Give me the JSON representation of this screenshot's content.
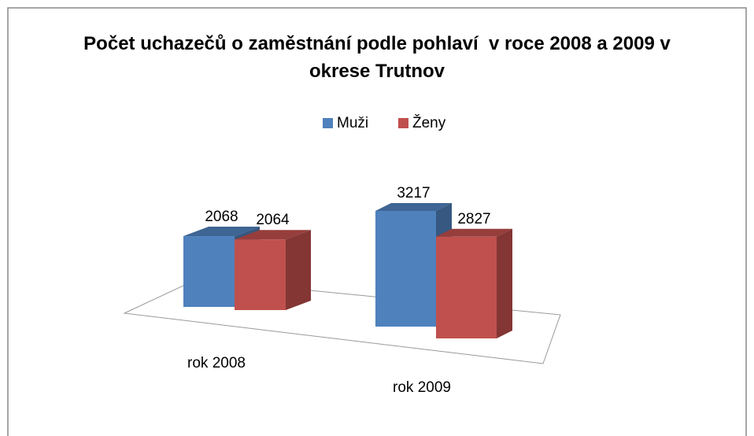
{
  "chart_data": {
    "type": "bar3d",
    "title": "Počet uchazečů o zaměstnání podle pohlaví  v roce 2008 a 2009 v okrese Trutnov",
    "categories": [
      "rok 2008",
      "rok 2009"
    ],
    "series": [
      {
        "name": "Muži",
        "color": "#4f81bd",
        "values": [
          2068,
          3217
        ]
      },
      {
        "name": "Ženy",
        "color": "#c0504d",
        "values": [
          2064,
          2827
        ]
      }
    ],
    "legend": "top"
  }
}
